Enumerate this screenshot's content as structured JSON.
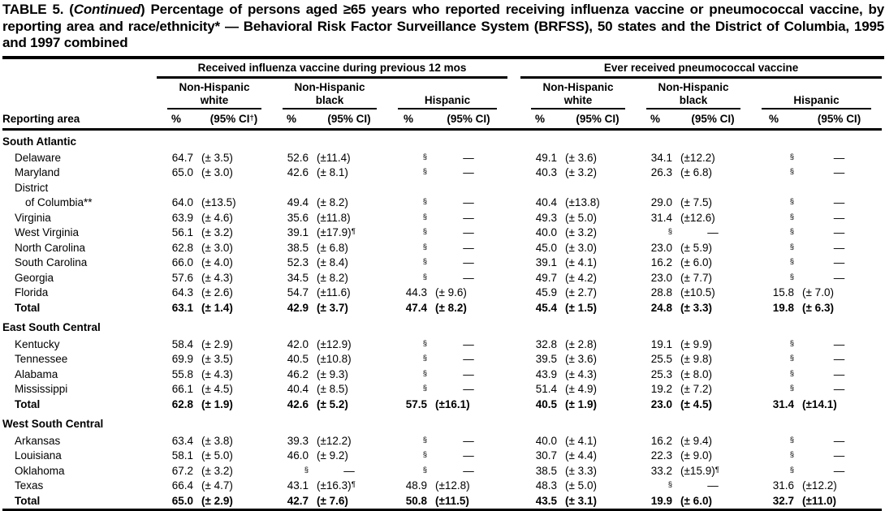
{
  "title": {
    "part1": "TABLE 5. (",
    "part2_italic": "Continued",
    "part3": ") Percentage of persons aged ≥65 years who reported receiving influenza vaccine or pneumococcal vaccine, by reporting area and race/ethnicity* — Behavioral Risk Factor Surveillance System (BRFSS), 50 states and the District of Columbia, 1995 and 1997 combined"
  },
  "table": {
    "area_header": "Reporting area",
    "pct_header": "%",
    "ci_header": "(95% CI)",
    "ci_header_first": "(95% CI†)",
    "groups": [
      {
        "label": "Received influenza vaccine during previous 12 mos",
        "subgroups": [
          "Non-Hispanic white",
          "Non-Hispanic black",
          "Hispanic"
        ]
      },
      {
        "label": "Ever received pneumococcal vaccine",
        "subgroups": [
          "Non-Hispanic white",
          "Non-Hispanic black",
          "Hispanic"
        ]
      }
    ],
    "rows": [
      {
        "type": "section",
        "label": "South Atlantic"
      },
      {
        "type": "data",
        "indent": 1,
        "label": "Delaware",
        "cells": [
          "64.7",
          "(± 3.5)",
          "52.6",
          "(±11.4)",
          "§",
          "—",
          "49.1",
          "(± 3.6)",
          "34.1",
          "(±12.2)",
          "§",
          "—"
        ]
      },
      {
        "type": "data",
        "indent": 1,
        "label": "Maryland",
        "cells": [
          "65.0",
          "(± 3.0)",
          "42.6",
          "(± 8.1)",
          "§",
          "—",
          "40.3",
          "(± 3.2)",
          "26.3",
          "(± 6.8)",
          "§",
          "—"
        ]
      },
      {
        "type": "data",
        "indent": 1,
        "label": "District",
        "cells": [
          "",
          "",
          "",
          "",
          "",
          "",
          "",
          "",
          "",
          "",
          "",
          ""
        ]
      },
      {
        "type": "data",
        "indent": 2,
        "label": "of Columbia**",
        "cells": [
          "64.0",
          "(±13.5)",
          "49.4",
          "(± 8.2)",
          "§",
          "—",
          "40.4",
          "(±13.8)",
          "29.0",
          "(± 7.5)",
          "§",
          "—"
        ]
      },
      {
        "type": "data",
        "indent": 1,
        "label": "Virginia",
        "cells": [
          "63.9",
          "(± 4.6)",
          "35.6",
          "(±11.8)",
          "§",
          "—",
          "49.3",
          "(± 5.0)",
          "31.4",
          "(±12.6)",
          "§",
          "—"
        ]
      },
      {
        "type": "data",
        "indent": 1,
        "label": "West Virginia",
        "cells": [
          "56.1",
          "(± 3.2)",
          "39.1",
          "(±17.9)¶",
          "§",
          "—",
          "40.0",
          "(± 3.2)",
          "§",
          "—",
          "§",
          "—"
        ]
      },
      {
        "type": "data",
        "indent": 1,
        "label": "North Carolina",
        "cells": [
          "62.8",
          "(± 3.0)",
          "38.5",
          "(± 6.8)",
          "§",
          "—",
          "45.0",
          "(± 3.0)",
          "23.0",
          "(± 5.9)",
          "§",
          "—"
        ]
      },
      {
        "type": "data",
        "indent": 1,
        "label": "South Carolina",
        "cells": [
          "66.0",
          "(± 4.0)",
          "52.3",
          "(± 8.4)",
          "§",
          "—",
          "39.1",
          "(± 4.1)",
          "16.2",
          "(± 6.0)",
          "§",
          "—"
        ]
      },
      {
        "type": "data",
        "indent": 1,
        "label": "Georgia",
        "cells": [
          "57.6",
          "(± 4.3)",
          "34.5",
          "(± 8.2)",
          "§",
          "—",
          "49.7",
          "(± 4.2)",
          "23.0",
          "(± 7.7)",
          "§",
          "—"
        ]
      },
      {
        "type": "data",
        "indent": 1,
        "label": "Florida",
        "cells": [
          "64.3",
          "(± 2.6)",
          "54.7",
          "(±11.6)",
          "44.3",
          "(± 9.6)",
          "45.9",
          "(± 2.7)",
          "28.8",
          "(±10.5)",
          "15.8",
          "(± 7.0)"
        ]
      },
      {
        "type": "total",
        "indent": 1,
        "label": "Total",
        "cells": [
          "63.1",
          "(± 1.4)",
          "42.9",
          "(± 3.7)",
          "47.4",
          "(± 8.2)",
          "45.4",
          "(± 1.5)",
          "24.8",
          "(± 3.3)",
          "19.8",
          "(± 6.3)"
        ]
      },
      {
        "type": "section",
        "gap": true,
        "label": "East South Central"
      },
      {
        "type": "data",
        "indent": 1,
        "label": "Kentucky",
        "cells": [
          "58.4",
          "(± 2.9)",
          "42.0",
          "(±12.9)",
          "§",
          "—",
          "32.8",
          "(± 2.8)",
          "19.1",
          "(± 9.9)",
          "§",
          "—"
        ]
      },
      {
        "type": "data",
        "indent": 1,
        "label": "Tennessee",
        "cells": [
          "69.9",
          "(± 3.5)",
          "40.5",
          "(±10.8)",
          "§",
          "—",
          "39.5",
          "(± 3.6)",
          "25.5",
          "(± 9.8)",
          "§",
          "—"
        ]
      },
      {
        "type": "data",
        "indent": 1,
        "label": "Alabama",
        "cells": [
          "55.8",
          "(± 4.3)",
          "46.2",
          "(± 9.3)",
          "§",
          "—",
          "43.9",
          "(± 4.3)",
          "25.3",
          "(± 8.0)",
          "§",
          "—"
        ]
      },
      {
        "type": "data",
        "indent": 1,
        "label": "Mississippi",
        "cells": [
          "66.1",
          "(± 4.5)",
          "40.4",
          "(± 8.5)",
          "§",
          "—",
          "51.4",
          "(± 4.9)",
          "19.2",
          "(± 7.2)",
          "§",
          "—"
        ]
      },
      {
        "type": "total",
        "indent": 1,
        "label": "Total",
        "cells": [
          "62.8",
          "(± 1.9)",
          "42.6",
          "(± 5.2)",
          "57.5",
          "(±16.1)",
          "40.5",
          "(± 1.9)",
          "23.0",
          "(± 4.5)",
          "31.4",
          "(±14.1)"
        ]
      },
      {
        "type": "section",
        "gap": true,
        "label": "West South Central"
      },
      {
        "type": "data",
        "indent": 1,
        "label": "Arkansas",
        "cells": [
          "63.4",
          "(± 3.8)",
          "39.3",
          "(±12.2)",
          "§",
          "—",
          "40.0",
          "(± 4.1)",
          "16.2",
          "(± 9.4)",
          "§",
          "—"
        ]
      },
      {
        "type": "data",
        "indent": 1,
        "label": "Louisiana",
        "cells": [
          "58.1",
          "(± 5.0)",
          "46.0",
          "(± 9.2)",
          "§",
          "—",
          "30.7",
          "(± 4.4)",
          "22.3",
          "(± 9.0)",
          "§",
          "—"
        ]
      },
      {
        "type": "data",
        "indent": 1,
        "label": "Oklahoma",
        "cells": [
          "67.2",
          "(± 3.2)",
          "§",
          "—",
          "§",
          "—",
          "38.5",
          "(± 3.3)",
          "33.2",
          "(±15.9)¶",
          "§",
          "—"
        ]
      },
      {
        "type": "data",
        "indent": 1,
        "label": "Texas",
        "cells": [
          "66.4",
          "(± 4.7)",
          "43.1",
          "(±16.3)¶",
          "48.9",
          "(±12.8)",
          "48.3",
          "(± 5.0)",
          "§",
          "—",
          "31.6",
          "(±12.2)"
        ]
      },
      {
        "type": "total",
        "indent": 1,
        "label": "Total",
        "cells": [
          "65.0",
          "(± 2.9)",
          "42.7",
          "(± 7.6)",
          "50.8",
          "(±11.5)",
          "43.5",
          "(± 3.1)",
          "19.9",
          "(± 6.0)",
          "32.7",
          "(±11.0)"
        ]
      }
    ]
  }
}
